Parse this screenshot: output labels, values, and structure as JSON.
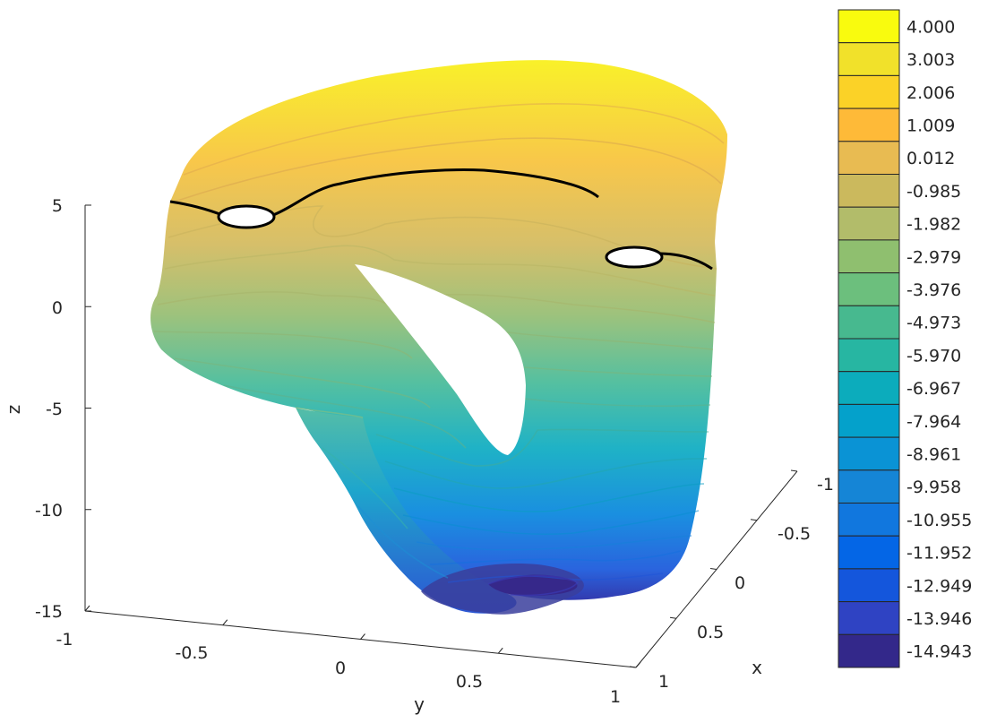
{
  "chart_data": {
    "type": "surface3d",
    "colormap": "parula",
    "surface_description_shown": "filled contour surface with contour lines and one highlighted black level curve",
    "zlabel": "z",
    "xlabel": "x",
    "ylabel": "y",
    "z_ticks": [
      "5",
      "0",
      "-5",
      "-10",
      "-15"
    ],
    "y_ticks": [
      "-1",
      "-0.5",
      "0",
      "0.5",
      "1"
    ],
    "x_ticks": [
      "-1",
      "-0.5",
      "0",
      "0.5",
      "1"
    ],
    "zlim": [
      -15,
      5
    ],
    "ylim": [
      -1,
      1
    ],
    "xlim": [
      -1,
      1
    ],
    "colorbar": {
      "position": "right",
      "levels": [
        "4.000",
        "3.003",
        "2.006",
        "1.009",
        "0.012",
        "-0.985",
        "-1.982",
        "-2.979",
        "-3.976",
        "-4.973",
        "-5.970",
        "-6.967",
        "-7.964",
        "-8.961",
        "-9.958",
        "-10.955",
        "-11.952",
        "-12.949",
        "-13.946",
        "-14.943"
      ],
      "colors": [
        "#f9fb0e",
        "#f1e12a",
        "#fbd227",
        "#feba38",
        "#e8bb52",
        "#cbb95d",
        "#b2bc6a",
        "#8fbf6f",
        "#6cbf7d",
        "#47b98f",
        "#27b6a2",
        "#0cacbc",
        "#04a1cb",
        "#0a93d5",
        "#1585d6",
        "#1177de",
        "#0466e6",
        "#1456dc",
        "#2f43c3",
        "#33288a"
      ]
    }
  }
}
